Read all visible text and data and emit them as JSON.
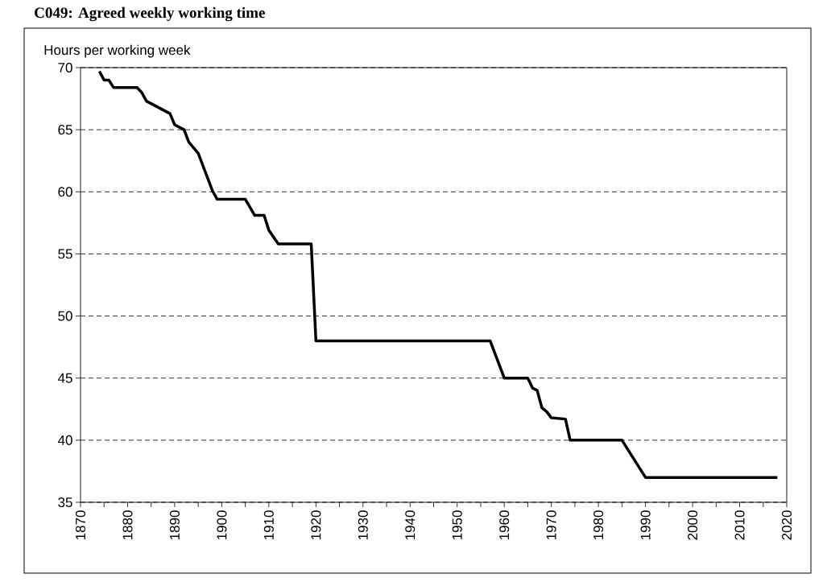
{
  "chart_data": {
    "type": "line",
    "title": "C049: Agreed weekly working time",
    "ylabel": "Hours per working week",
    "x": [
      1874,
      1875,
      1876,
      1877,
      1882,
      1883,
      1884,
      1889,
      1890,
      1892,
      1893,
      1895,
      1898,
      1899,
      1904,
      1905,
      1907,
      1909,
      1910,
      1912,
      1919,
      1920,
      1957,
      1960,
      1965,
      1966,
      1967,
      1968,
      1969,
      1970,
      1973,
      1974,
      1985,
      1987,
      1990,
      2018
    ],
    "values": [
      69.7,
      69.0,
      69.0,
      68.4,
      68.4,
      68.0,
      67.3,
      66.3,
      65.4,
      65.0,
      64.0,
      63.1,
      60.1,
      59.4,
      59.4,
      59.4,
      58.1,
      58.1,
      56.9,
      55.8,
      55.8,
      48.0,
      48.0,
      45.0,
      45.0,
      44.2,
      44.0,
      42.6,
      42.3,
      41.8,
      41.7,
      40.0,
      40.0,
      38.8,
      37.0,
      37.0
    ],
    "color": "#000000",
    "line_style": "solid",
    "marker": "none",
    "xlim": [
      1870,
      2020
    ],
    "xticks": [
      1870,
      1880,
      1890,
      1900,
      1910,
      1920,
      1930,
      1940,
      1950,
      1960,
      1970,
      1980,
      1990,
      2000,
      2010,
      2020
    ],
    "ylim": [
      35,
      70
    ],
    "yticks": [
      35,
      40,
      45,
      50,
      55,
      60,
      65,
      70
    ],
    "grid": "y"
  }
}
